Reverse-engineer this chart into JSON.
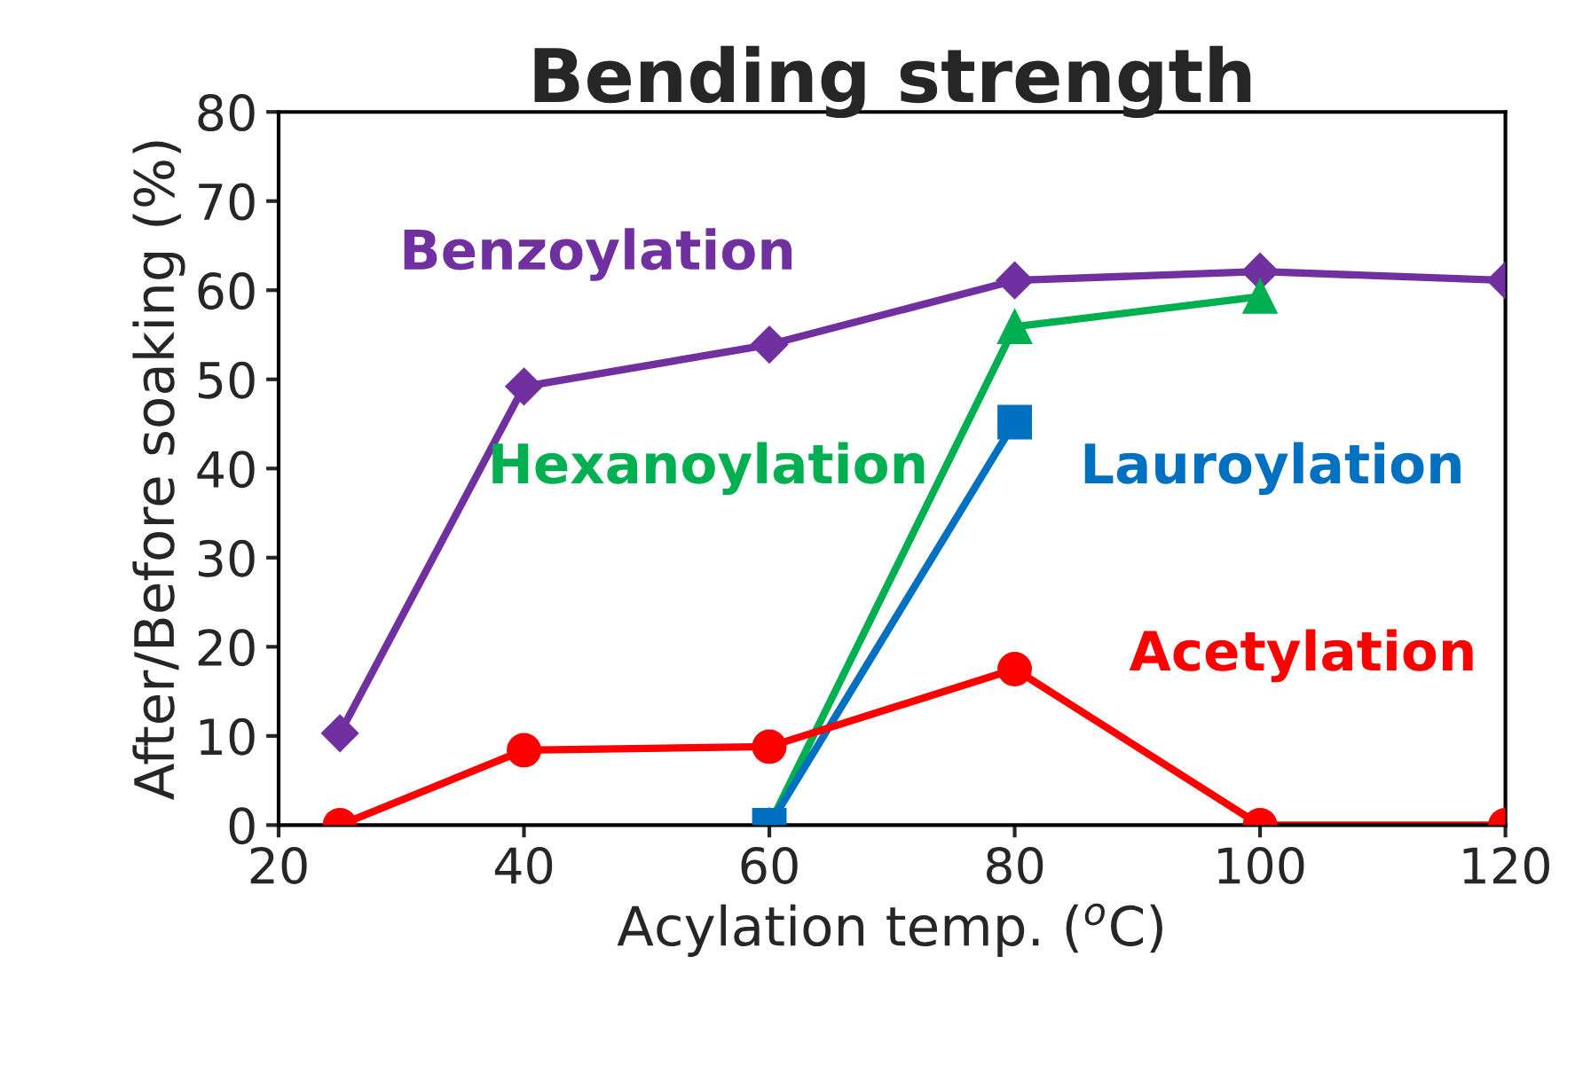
{
  "chart_data": {
    "type": "line",
    "title": "Bending strength",
    "xlabel": "Acylation temp. ($^{o}$C)",
    "ylabel": "After/Before soaking (%)",
    "xlim": [
      20,
      120
    ],
    "xticks": [
      20,
      40,
      60,
      80,
      100,
      120
    ],
    "ylim": [
      0,
      80
    ],
    "yticks": [
      0,
      10,
      20,
      30,
      40,
      50,
      60,
      70,
      80
    ],
    "grid": false,
    "legend": false,
    "series": [
      {
        "name": "Benzoylation",
        "color": "#7030a0",
        "marker": "diamond",
        "x": [
          25,
          40,
          60,
          80,
          100,
          120
        ],
        "values": [
          10.3,
          49.2,
          53.9,
          61.1,
          62.1,
          61.1
        ]
      },
      {
        "name": "Hexanoylation",
        "color": "#00b050",
        "marker": "triangle",
        "x": [
          60,
          80,
          100
        ],
        "values": [
          0,
          55.9,
          59.3
        ]
      },
      {
        "name": "Lauroylation",
        "color": "#0070c0",
        "marker": "square",
        "x": [
          60,
          80
        ],
        "values": [
          0,
          45.2
        ]
      },
      {
        "name": "Acetylation",
        "color": "#ff0000",
        "marker": "circle",
        "x": [
          25,
          40,
          60,
          80,
          100,
          120
        ],
        "values": [
          0,
          8.4,
          8.8,
          17.5,
          0,
          0
        ]
      }
    ]
  }
}
